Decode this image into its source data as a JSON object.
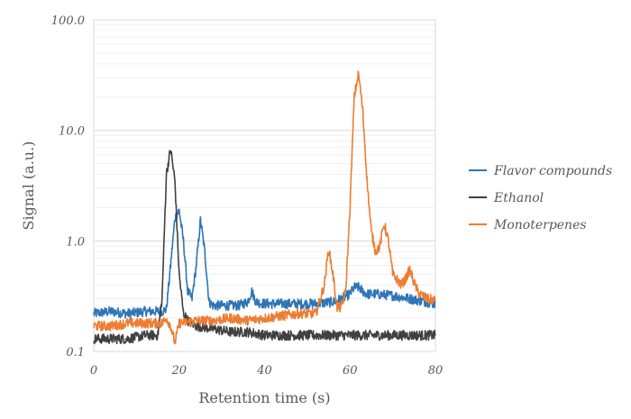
{
  "chart_data": {
    "type": "line",
    "title": "",
    "xlabel": "Retention time (s)",
    "ylabel": "Signal (a.u.)",
    "xlim": [
      0,
      80
    ],
    "ylim": [
      0.1,
      100
    ],
    "y_scale": "log",
    "x_ticks": [
      0,
      20,
      40,
      60,
      80
    ],
    "x_tick_labels": [
      "0",
      "20",
      "40",
      "60",
      "80"
    ],
    "y_ticks": [
      0.1,
      1,
      10,
      100
    ],
    "y_tick_labels": [
      "0.1",
      "1.0",
      "10.0",
      "100.0"
    ],
    "grid": "major and minor horizontal gridlines",
    "legend_position": "right",
    "series": [
      {
        "name": "Flavor compounds",
        "color": "#2e75b6",
        "x": [
          0,
          4,
          8,
          12,
          16,
          17,
          18,
          19,
          20,
          21,
          22,
          23,
          24,
          25,
          26,
          27,
          28,
          30,
          34,
          36,
          37,
          38,
          40,
          44,
          48,
          52,
          56,
          58,
          60,
          61,
          62,
          63,
          64,
          66,
          70,
          74,
          78,
          80
        ],
        "y": [
          0.22,
          0.23,
          0.22,
          0.23,
          0.23,
          0.24,
          0.6,
          1.6,
          1.9,
          1.0,
          0.35,
          0.3,
          0.6,
          1.55,
          0.8,
          0.28,
          0.26,
          0.26,
          0.26,
          0.28,
          0.35,
          0.28,
          0.27,
          0.27,
          0.27,
          0.27,
          0.28,
          0.3,
          0.33,
          0.38,
          0.38,
          0.35,
          0.33,
          0.33,
          0.32,
          0.3,
          0.28,
          0.27
        ]
      },
      {
        "name": "Ethanol",
        "color": "#404040",
        "x": [
          0,
          4,
          8,
          12,
          15,
          16,
          17,
          18,
          19,
          20,
          21,
          22,
          24,
          28,
          32,
          36,
          40,
          44,
          48,
          52,
          56,
          60,
          64,
          68,
          72,
          76,
          80
        ],
        "y": [
          0.13,
          0.13,
          0.13,
          0.14,
          0.14,
          0.3,
          4.0,
          6.8,
          3.5,
          0.5,
          0.22,
          0.19,
          0.17,
          0.16,
          0.15,
          0.15,
          0.14,
          0.14,
          0.14,
          0.14,
          0.14,
          0.14,
          0.14,
          0.14,
          0.14,
          0.14,
          0.14
        ]
      },
      {
        "name": "Monoterpenes",
        "color": "#ed7d31",
        "x": [
          0,
          4,
          8,
          12,
          16,
          17,
          18,
          19,
          20,
          24,
          28,
          32,
          36,
          40,
          44,
          48,
          52,
          54,
          55,
          56,
          57,
          58,
          59,
          60,
          61,
          62,
          63,
          64,
          65,
          66,
          67,
          68,
          69,
          70,
          72,
          73,
          74,
          75,
          76,
          78,
          80
        ],
        "y": [
          0.17,
          0.17,
          0.18,
          0.18,
          0.18,
          0.2,
          0.17,
          0.12,
          0.18,
          0.19,
          0.19,
          0.2,
          0.19,
          0.2,
          0.21,
          0.22,
          0.22,
          0.4,
          0.85,
          0.5,
          0.25,
          0.25,
          0.35,
          2.0,
          20.0,
          33.0,
          15.0,
          3.5,
          1.2,
          0.8,
          0.9,
          1.45,
          1.0,
          0.5,
          0.4,
          0.45,
          0.55,
          0.42,
          0.34,
          0.3,
          0.29
        ]
      }
    ]
  }
}
